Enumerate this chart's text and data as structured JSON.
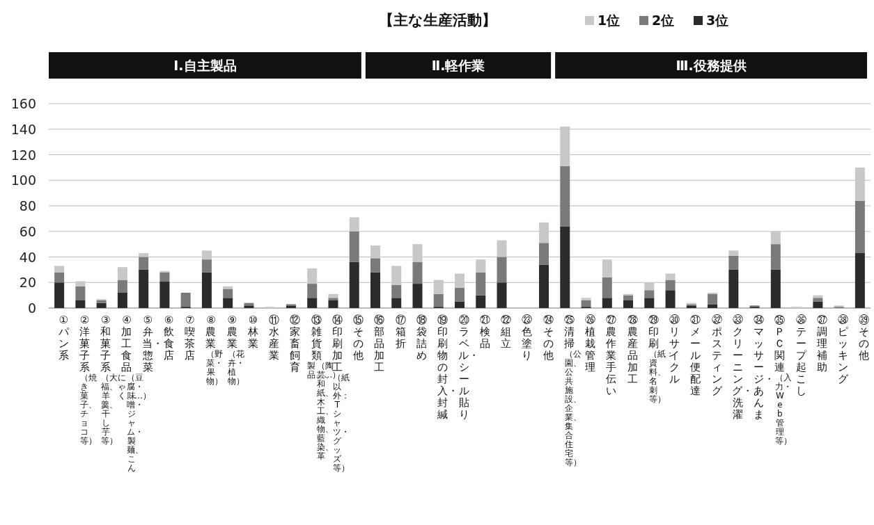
{
  "chart_data": {
    "type": "bar",
    "title": "【主な生産活動】",
    "categories": [
      "①パン系",
      "②洋菓子系（焼き菓子、チョコ等）",
      "③和菓子系（大福、羊羹、干し芋等）",
      "④加工食品（豆腐・味噌・ジャム・製麺、こんにゃく、…）",
      "⑤弁当・惣菜",
      "⑥飲食店",
      "⑦喫茶店",
      "⑧農業（野菜・果物）",
      "⑨農業（花卉・植物）",
      "⑩林業",
      "⑪水産業",
      "⑫家畜飼育",
      "⑬雑貨類（陶芸、和紙、木工、織物、藍染、革製品、…）",
      "⑭印刷加工（紙以外：Tシャツ・グッズ等）",
      "⑮その他",
      "⑯部品加工",
      "⑰箱折",
      "⑱袋詰め",
      "⑲印刷物の封入・封緘",
      "⑳ラベル・シール貼り",
      "㉑検品",
      "㉒組立",
      "㉓色塗り",
      "㉔その他",
      "㉕清掃（公園、公共施設、企業、集合住宅等）",
      "㉖植栽管理",
      "㉗農作業手伝い",
      "㉘農産品加工",
      "㉙印刷（紙：資料、名刺等）",
      "㉚リサイクル",
      "㉛メール便配達",
      "㉜ポスティング",
      "㉝クリーニング・洗濯",
      "㉞マッサージ・あんま",
      "㉟ＰＣ関連（入力・Web管理等）",
      "㊱テープ起こし",
      "㊲調理補助",
      "㊳ピッキング",
      "㊴その他"
    ],
    "series": [
      {
        "name": "3位",
        "color": "#2b2b2b",
        "values": [
          20,
          6,
          4,
          12,
          30,
          21,
          1,
          28,
          8,
          2,
          0,
          2,
          8,
          6,
          36,
          28,
          8,
          19,
          1,
          5,
          10,
          20,
          0,
          34,
          64,
          1,
          8,
          6,
          8,
          14,
          2,
          3,
          30,
          1,
          30,
          0,
          5,
          0,
          43
        ]
      },
      {
        "name": "2位",
        "color": "#7a7a7a",
        "values": [
          8,
          11,
          2,
          10,
          10,
          7,
          11,
          10,
          7,
          2,
          0,
          1,
          11,
          2,
          24,
          11,
          10,
          17,
          10,
          11,
          18,
          20,
          0,
          17,
          47,
          5,
          16,
          4,
          6,
          8,
          1,
          8,
          11,
          1,
          20,
          0,
          3,
          1,
          41
        ]
      },
      {
        "name": "1位",
        "color": "#c8c8c8",
        "values": [
          5,
          4,
          1,
          10,
          3,
          1,
          0,
          7,
          2,
          0,
          1,
          0,
          12,
          3,
          11,
          10,
          15,
          14,
          11,
          11,
          10,
          13,
          0,
          16,
          31,
          2,
          14,
          1,
          6,
          5,
          1,
          1,
          4,
          0,
          10,
          1,
          2,
          1,
          26
        ]
      }
    ],
    "stacked": true,
    "ylim": [
      0,
      160
    ],
    "yticks": [
      0,
      20,
      40,
      60,
      80,
      100,
      120,
      140,
      160
    ],
    "grid": "y",
    "legend": "top right",
    "annotations": [
      "Ⅰ.自主製品",
      "Ⅱ.軽作業",
      "Ⅲ.役務提供"
    ]
  }
}
